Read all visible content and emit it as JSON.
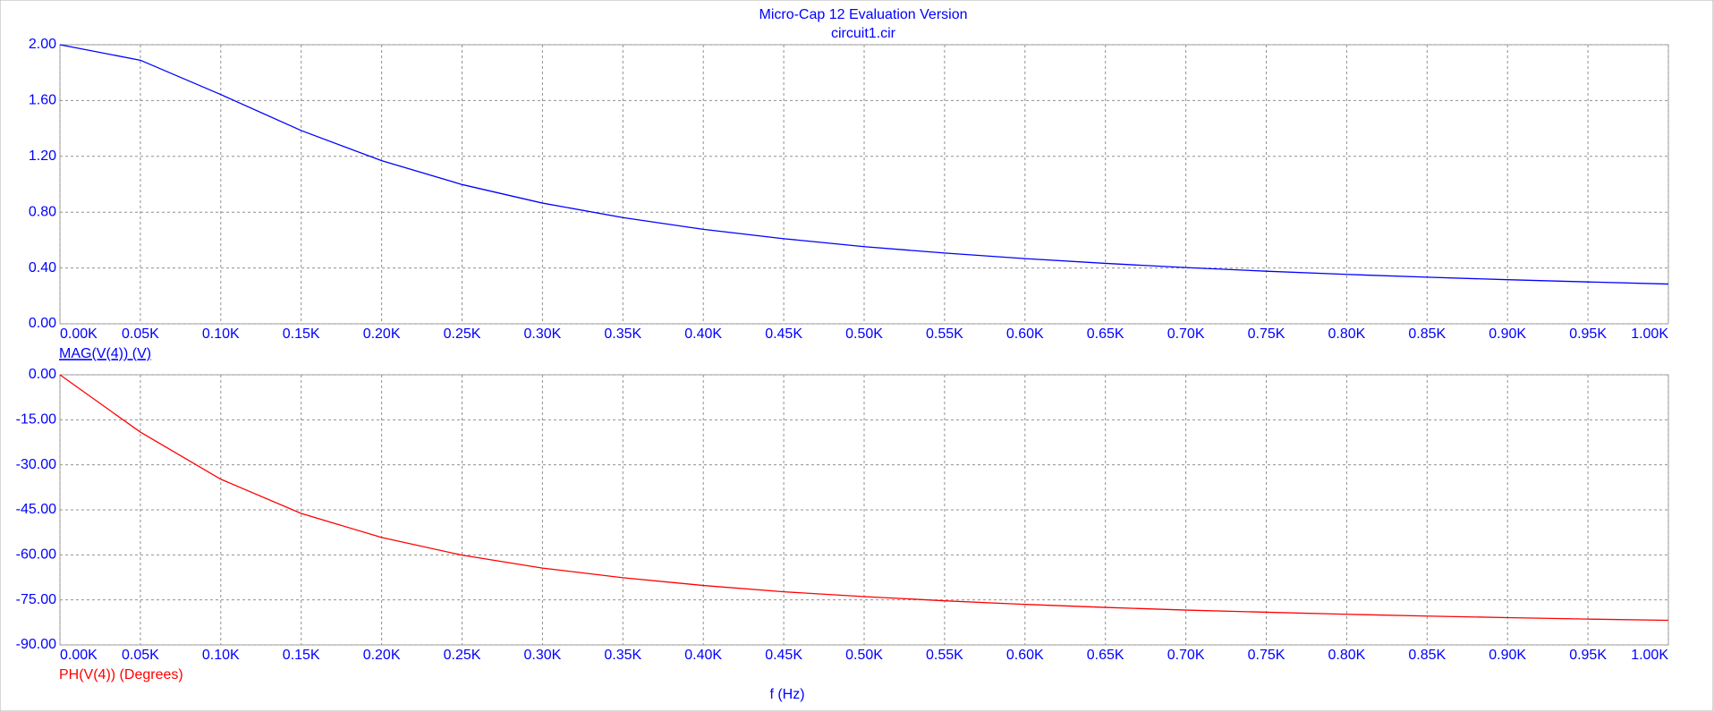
{
  "header": {
    "title": "Micro-Cap 12 Evaluation Version",
    "subtitle": "circuit1.cir"
  },
  "chart_data": [
    {
      "type": "line",
      "x": [
        0,
        50,
        100,
        150,
        200,
        250,
        300,
        350,
        400,
        450,
        500,
        550,
        600,
        650,
        700,
        750,
        800,
        850,
        900,
        950,
        1000
      ],
      "series": [
        {
          "name": "MAG(V(4)) (V)",
          "color": "#0000ff",
          "values": [
            2.0,
            1.889,
            1.643,
            1.385,
            1.169,
            0.998,
            0.865,
            0.761,
            0.677,
            0.61,
            0.553,
            0.507,
            0.467,
            0.433,
            0.403,
            0.377,
            0.354,
            0.334,
            0.316,
            0.3,
            0.285
          ]
        }
      ],
      "xlim": [
        0,
        1000
      ],
      "xticks": [
        {
          "value": 0,
          "label": "0.00K"
        },
        {
          "value": 50,
          "label": "0.05K"
        },
        {
          "value": 100,
          "label": "0.10K"
        },
        {
          "value": 150,
          "label": "0.15K"
        },
        {
          "value": 200,
          "label": "0.20K"
        },
        {
          "value": 250,
          "label": "0.25K"
        },
        {
          "value": 300,
          "label": "0.30K"
        },
        {
          "value": 350,
          "label": "0.35K"
        },
        {
          "value": 400,
          "label": "0.40K"
        },
        {
          "value": 450,
          "label": "0.45K"
        },
        {
          "value": 500,
          "label": "0.50K"
        },
        {
          "value": 550,
          "label": "0.55K"
        },
        {
          "value": 600,
          "label": "0.60K"
        },
        {
          "value": 650,
          "label": "0.65K"
        },
        {
          "value": 700,
          "label": "0.70K"
        },
        {
          "value": 750,
          "label": "0.75K"
        },
        {
          "value": 800,
          "label": "0.80K"
        },
        {
          "value": 850,
          "label": "0.85K"
        },
        {
          "value": 900,
          "label": "0.90K"
        },
        {
          "value": 950,
          "label": "0.95K"
        },
        {
          "value": 1000,
          "label": "1.00K"
        }
      ],
      "ylim": [
        0,
        2
      ],
      "yticks": [
        {
          "value": 0,
          "label": "0.00"
        },
        {
          "value": 0.4,
          "label": "0.40"
        },
        {
          "value": 0.8,
          "label": "0.80"
        },
        {
          "value": 1.2,
          "label": "1.20"
        },
        {
          "value": 1.6,
          "label": "1.60"
        },
        {
          "value": 2,
          "label": "2.00"
        }
      ],
      "grid": true
    },
    {
      "type": "line",
      "x": [
        0,
        50,
        100,
        150,
        200,
        250,
        300,
        350,
        400,
        450,
        500,
        550,
        600,
        650,
        700,
        750,
        800,
        850,
        900,
        950,
        1000
      ],
      "series": [
        {
          "name": "PH(V(4)) (Degrees)",
          "color": "#ff0000",
          "values": [
            0,
            -19.1,
            -34.8,
            -46.2,
            -54.2,
            -60.1,
            -64.4,
            -67.6,
            -70.2,
            -72.3,
            -73.9,
            -75.3,
            -76.5,
            -77.5,
            -78.4,
            -79.1,
            -79.8,
            -80.4,
            -80.9,
            -81.4,
            -81.8
          ]
        }
      ],
      "xlim": [
        0,
        1000
      ],
      "xticks": [
        {
          "value": 0,
          "label": "0.00K"
        },
        {
          "value": 50,
          "label": "0.05K"
        },
        {
          "value": 100,
          "label": "0.10K"
        },
        {
          "value": 150,
          "label": "0.15K"
        },
        {
          "value": 200,
          "label": "0.20K"
        },
        {
          "value": 250,
          "label": "0.25K"
        },
        {
          "value": 300,
          "label": "0.30K"
        },
        {
          "value": 350,
          "label": "0.35K"
        },
        {
          "value": 400,
          "label": "0.40K"
        },
        {
          "value": 450,
          "label": "0.45K"
        },
        {
          "value": 500,
          "label": "0.50K"
        },
        {
          "value": 550,
          "label": "0.55K"
        },
        {
          "value": 600,
          "label": "0.60K"
        },
        {
          "value": 650,
          "label": "0.65K"
        },
        {
          "value": 700,
          "label": "0.70K"
        },
        {
          "value": 750,
          "label": "0.75K"
        },
        {
          "value": 800,
          "label": "0.80K"
        },
        {
          "value": 850,
          "label": "0.85K"
        },
        {
          "value": 900,
          "label": "0.90K"
        },
        {
          "value": 950,
          "label": "0.95K"
        },
        {
          "value": 1000,
          "label": "1.00K"
        }
      ],
      "ylim": [
        -90,
        0
      ],
      "yticks": [
        {
          "value": -90,
          "label": "-90.00"
        },
        {
          "value": -75,
          "label": "-75.00"
        },
        {
          "value": -60,
          "label": "-60.00"
        },
        {
          "value": -45,
          "label": "-45.00"
        },
        {
          "value": -30,
          "label": "-30.00"
        },
        {
          "value": -15,
          "label": "-15.00"
        },
        {
          "value": 0,
          "label": "0.00"
        }
      ],
      "x_label": "f (Hz)",
      "grid": true
    }
  ]
}
